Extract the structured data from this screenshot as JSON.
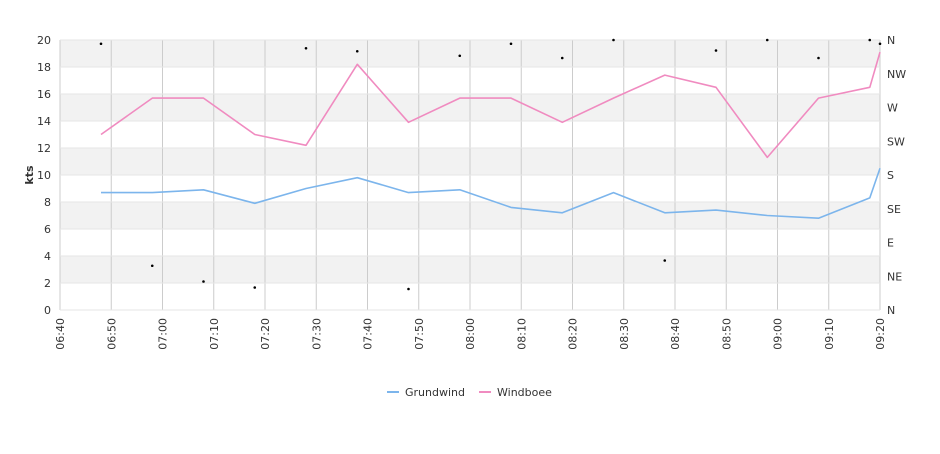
{
  "chart_data": {
    "type": "line",
    "ylabel": "kts",
    "ylim": [
      0,
      20
    ],
    "y_ticks": [
      "0",
      "2",
      "4",
      "6",
      "8",
      "10",
      "12",
      "14",
      "16",
      "18",
      "20"
    ],
    "y2_ticks": [
      {
        "label": "N",
        "deg": 0
      },
      {
        "label": "NE",
        "deg": 45
      },
      {
        "label": "E",
        "deg": 90
      },
      {
        "label": "SE",
        "deg": 135
      },
      {
        "label": "S",
        "deg": 180
      },
      {
        "label": "SW",
        "deg": 225
      },
      {
        "label": "W",
        "deg": 270
      },
      {
        "label": "NW",
        "deg": 315
      },
      {
        "label": "N",
        "deg": 360
      }
    ],
    "y2lim": [
      0,
      360
    ],
    "x_ticks": [
      "06:40",
      "06:50",
      "07:00",
      "07:10",
      "07:20",
      "07:30",
      "07:40",
      "07:50",
      "08:00",
      "08:10",
      "08:20",
      "08:30",
      "08:40",
      "08:50",
      "09:00",
      "09:10",
      "09:20"
    ],
    "xlim": [
      "06:40",
      "09:20"
    ],
    "x": [
      "06:48",
      "06:58",
      "07:08",
      "07:18",
      "07:28",
      "07:38",
      "07:48",
      "07:58",
      "08:08",
      "08:18",
      "08:28",
      "08:38",
      "08:48",
      "08:58",
      "09:08",
      "09:18",
      "09:20"
    ],
    "series": [
      {
        "name": "Grundwind",
        "color": "#7cb5ec",
        "values": [
          8.7,
          8.7,
          8.9,
          7.9,
          9.0,
          9.8,
          8.7,
          8.9,
          7.6,
          7.2,
          8.7,
          7.2,
          7.4,
          7.0,
          6.8,
          8.3,
          10.5
        ]
      },
      {
        "name": "Windboee",
        "color": "#f08bc0",
        "values": [
          13.0,
          15.7,
          15.7,
          13.0,
          12.2,
          18.2,
          13.9,
          15.7,
          15.7,
          13.9,
          15.7,
          17.4,
          16.5,
          11.3,
          15.7,
          16.5,
          19.1
        ]
      }
    ],
    "direction": {
      "x": [
        "06:48",
        "06:58",
        "07:08",
        "07:18",
        "07:28",
        "07:38",
        "07:48",
        "07:58",
        "08:08",
        "08:18",
        "08:28",
        "08:38",
        "08:48",
        "08:58",
        "09:08",
        "09:18",
        "09:20"
      ],
      "deg": [
        355,
        59,
        38,
        30,
        349,
        345,
        28,
        339,
        355,
        336,
        360,
        66,
        346,
        360,
        336,
        360,
        355
      ]
    },
    "grid": true,
    "legend_position": "bottom-center"
  }
}
